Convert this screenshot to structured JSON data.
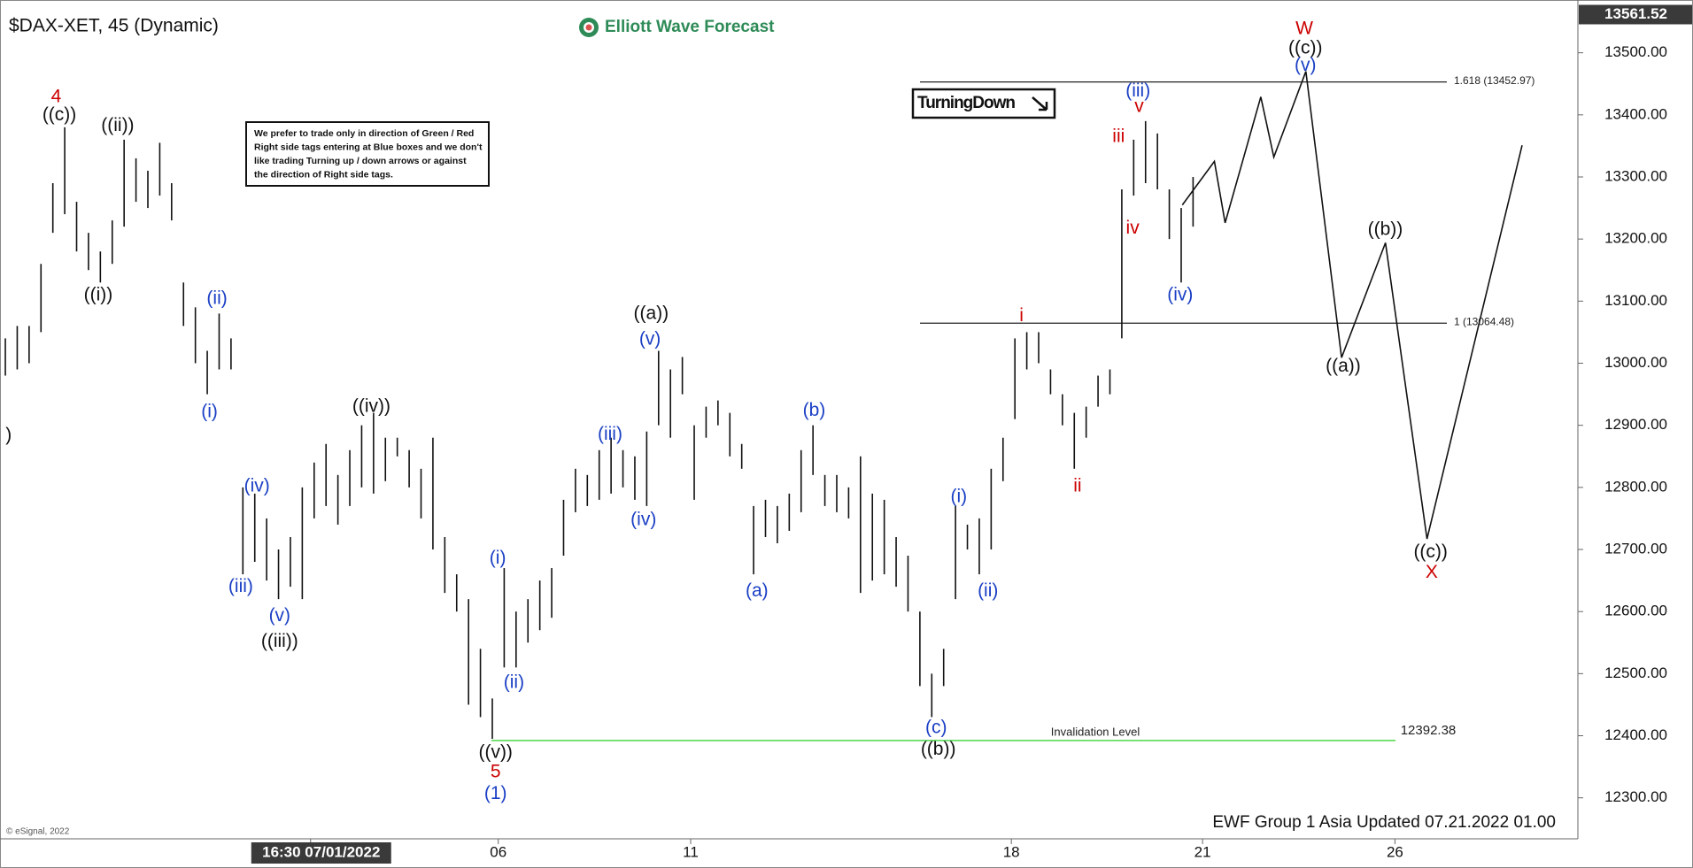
{
  "chart_data": {
    "type": "ohlc",
    "title": "$DAX-XET, 45 (Dynamic)",
    "logo": "Elliott Wave Forecast",
    "footer": "EWF Group 1 Asia Updated 07.21.2022 01.00",
    "copyright": "© eSignal, 2022",
    "notice": [
      "We prefer to trade only in direction of Green / Red",
      "Right side tags entering at Blue boxes and we don't",
      "like trading Turning up / down arrows or against",
      "the direction of Right side tags."
    ],
    "signal": "TurningDown",
    "last_price": 13561.52,
    "bar_color": "#111111",
    "ylim": [
      12234,
      13585
    ],
    "yticks": [
      {
        "value": 12300,
        "label": "12300.00"
      },
      {
        "value": 12400,
        "label": "12400.00"
      },
      {
        "value": 12500,
        "label": "12500.00"
      },
      {
        "value": 12600,
        "label": "12600.00"
      },
      {
        "value": 12700,
        "label": "12700.00"
      },
      {
        "value": 12800,
        "label": "12800.00"
      },
      {
        "value": 12900,
        "label": "12900.00"
      },
      {
        "value": 13000,
        "label": "13000.00"
      },
      {
        "value": 13100,
        "label": "13100.00"
      },
      {
        "value": 13200,
        "label": "13200.00"
      },
      {
        "value": 13300,
        "label": "13300.00"
      },
      {
        "value": 13400,
        "label": "13400.00"
      },
      {
        "value": 13500,
        "label": "13500.00"
      }
    ],
    "xlim": [
      -0.45,
      132.4
    ],
    "xticks": [
      {
        "value": 25.7,
        "label": "16:30 07/01/2022"
      },
      {
        "value": 41.5,
        "label": "06"
      },
      {
        "value": 57.7,
        "label": "11"
      },
      {
        "value": 84.7,
        "label": "18"
      },
      {
        "value": 100.8,
        "label": "21"
      },
      {
        "value": 117,
        "label": "26"
      }
    ],
    "bars": [
      {
        "high": 13040,
        "low": 12980
      },
      {
        "high": 13060,
        "low": 12990
      },
      {
        "high": 13060,
        "low": 13000
      },
      {
        "high": 13160,
        "low": 13050
      },
      {
        "high": 13290,
        "low": 13210
      },
      {
        "high": 13380,
        "low": 13240
      },
      {
        "high": 13260,
        "low": 13180
      },
      {
        "high": 13210,
        "low": 13150
      },
      {
        "high": 13180,
        "low": 13130
      },
      {
        "high": 13230,
        "low": 13160
      },
      {
        "high": 13360,
        "low": 13220
      },
      {
        "high": 13330,
        "low": 13260
      },
      {
        "high": 13310,
        "low": 13250
      },
      {
        "high": 13355,
        "low": 13270
      },
      {
        "high": 13290,
        "low": 13230
      },
      {
        "high": 13130,
        "low": 13060
      },
      {
        "high": 13090,
        "low": 13000
      },
      {
        "high": 13020,
        "low": 12950
      },
      {
        "high": 13080,
        "low": 12990
      },
      {
        "high": 13040,
        "low": 12990
      },
      {
        "high": 12800,
        "low": 12660
      },
      {
        "high": 12790,
        "low": 12680
      },
      {
        "high": 12750,
        "low": 12650
      },
      {
        "high": 12700,
        "low": 12620
      },
      {
        "high": 12720,
        "low": 12640
      },
      {
        "high": 12800,
        "low": 12620
      },
      {
        "high": 12840,
        "low": 12750
      },
      {
        "high": 12870,
        "low": 12770
      },
      {
        "high": 12820,
        "low": 12740
      },
      {
        "high": 12860,
        "low": 12770
      },
      {
        "high": 12900,
        "low": 12800
      },
      {
        "high": 12920,
        "low": 12790
      },
      {
        "high": 12880,
        "low": 12810
      },
      {
        "high": 12880,
        "low": 12850
      },
      {
        "high": 12860,
        "low": 12800
      },
      {
        "high": 12830,
        "low": 12750
      },
      {
        "high": 12880,
        "low": 12700
      },
      {
        "high": 12720,
        "low": 12630
      },
      {
        "high": 12660,
        "low": 12600
      },
      {
        "high": 12620,
        "low": 12450
      },
      {
        "high": 12540,
        "low": 12430
      },
      {
        "high": 12460,
        "low": 12395
      },
      {
        "high": 12670,
        "low": 12510
      },
      {
        "high": 12600,
        "low": 12510
      },
      {
        "high": 12620,
        "low": 12550
      },
      {
        "high": 12650,
        "low": 12570
      },
      {
        "high": 12670,
        "low": 12590
      },
      {
        "high": 12780,
        "low": 12690
      },
      {
        "high": 12830,
        "low": 12760
      },
      {
        "high": 12820,
        "low": 12770
      },
      {
        "high": 12860,
        "low": 12780
      },
      {
        "high": 12880,
        "low": 12790
      },
      {
        "high": 12860,
        "low": 12800
      },
      {
        "high": 12850,
        "low": 12780
      },
      {
        "high": 12890,
        "low": 12770
      },
      {
        "high": 13020,
        "low": 12900
      },
      {
        "high": 12990,
        "low": 12880
      },
      {
        "high": 13010,
        "low": 12950
      },
      {
        "high": 12900,
        "low": 12780
      },
      {
        "high": 12930,
        "low": 12880
      },
      {
        "high": 12940,
        "low": 12900
      },
      {
        "high": 12920,
        "low": 12850
      },
      {
        "high": 12870,
        "low": 12830
      },
      {
        "high": 12770,
        "low": 12660
      },
      {
        "high": 12780,
        "low": 12720
      },
      {
        "high": 12770,
        "low": 12710
      },
      {
        "high": 12790,
        "low": 12730
      },
      {
        "high": 12860,
        "low": 12760
      },
      {
        "high": 12900,
        "low": 12820
      },
      {
        "high": 12820,
        "low": 12770
      },
      {
        "high": 12820,
        "low": 12760
      },
      {
        "high": 12800,
        "low": 12750
      },
      {
        "high": 12850,
        "low": 12630
      },
      {
        "high": 12790,
        "low": 12650
      },
      {
        "high": 12780,
        "low": 12660
      },
      {
        "high": 12720,
        "low": 12640
      },
      {
        "high": 12690,
        "low": 12600
      },
      {
        "high": 12600,
        "low": 12480
      },
      {
        "high": 12500,
        "low": 12430
      },
      {
        "high": 12540,
        "low": 12480
      },
      {
        "high": 12770,
        "low": 12620
      },
      {
        "high": 12740,
        "low": 12700
      },
      {
        "high": 12750,
        "low": 12660
      },
      {
        "high": 12830,
        "low": 12700
      },
      {
        "high": 12880,
        "low": 12810
      },
      {
        "high": 13040,
        "low": 12910
      },
      {
        "high": 13050,
        "low": 12990
      },
      {
        "high": 13050,
        "low": 13000
      },
      {
        "high": 12990,
        "low": 12950
      },
      {
        "high": 12950,
        "low": 12900
      },
      {
        "high": 12920,
        "low": 12830
      },
      {
        "high": 12930,
        "low": 12880
      },
      {
        "high": 12980,
        "low": 12930
      },
      {
        "high": 12990,
        "low": 12950
      },
      {
        "high": 13280,
        "low": 13040
      },
      {
        "high": 13360,
        "low": 13270
      },
      {
        "high": 13390,
        "low": 13290
      },
      {
        "high": 13370,
        "low": 13280
      },
      {
        "high": 13280,
        "low": 13200
      },
      {
        "high": 13250,
        "low": 13130
      },
      {
        "high": 13300,
        "low": 13220
      }
    ],
    "projection": {
      "x": [
        99.1,
        101.8,
        102.7,
        105.7,
        106.8,
        109.5,
        112.5,
        116.2,
        119.7,
        127.7
      ],
      "y": [
        13255,
        13325,
        13226,
        13429,
        13332,
        13470,
        13009,
        13194,
        12717,
        13351
      ]
    },
    "levels": [
      {
        "value": 13452.97,
        "label": "1.618 (13452.97)",
        "color": "#222222"
      },
      {
        "value": 13064.48,
        "label": "1 (13064.48)",
        "color": "#222222"
      }
    ],
    "invalidation": {
      "label": "Invalidation Level",
      "value": 12392.38,
      "color": "#66dd66"
    },
    "annotations": [
      {
        "text": "4",
        "color": "#cc0000"
      },
      {
        "text": "((c))",
        "color": "#111111"
      },
      {
        "text": "((ii))",
        "color": "#111111"
      },
      {
        "text": "((i))",
        "color": "#111111"
      },
      {
        "text": "(ii)",
        "color": "#1a3fc4"
      },
      {
        "text": "(i)",
        "color": "#1a3fc4"
      },
      {
        "text": ")",
        "color": "#111111"
      },
      {
        "text": "((iv))",
        "color": "#111111"
      },
      {
        "text": "(iv)",
        "color": "#1a3fc4"
      },
      {
        "text": "(iii)",
        "color": "#1a3fc4"
      },
      {
        "text": "(v)",
        "color": "#1a3fc4"
      },
      {
        "text": "((iii))",
        "color": "#111111"
      },
      {
        "text": "(i)",
        "color": "#1a3fc4"
      },
      {
        "text": "(ii)",
        "color": "#1a3fc4"
      },
      {
        "text": "((v))",
        "color": "#111111"
      },
      {
        "text": "5",
        "color": "#cc0000"
      },
      {
        "text": "(1)",
        "color": "#1a3fc4"
      },
      {
        "text": "((a))",
        "color": "#111111"
      },
      {
        "text": "(v)",
        "color": "#1a3fc4"
      },
      {
        "text": "(iii)",
        "color": "#1a3fc4"
      },
      {
        "text": "(iv)",
        "color": "#1a3fc4"
      },
      {
        "text": "(b)",
        "color": "#1a3fc4"
      },
      {
        "text": "(a)",
        "color": "#1a3fc4"
      },
      {
        "text": "(c)",
        "color": "#1a3fc4"
      },
      {
        "text": "((b))",
        "color": "#111111"
      },
      {
        "text": "(i)",
        "color": "#1a3fc4"
      },
      {
        "text": "(ii)",
        "color": "#1a3fc4"
      },
      {
        "text": "i",
        "color": "#cc0000"
      },
      {
        "text": "ii",
        "color": "#cc0000"
      },
      {
        "text": "iii",
        "color": "#cc0000"
      },
      {
        "text": "iv",
        "color": "#cc0000"
      },
      {
        "text": "v",
        "color": "#cc0000"
      },
      {
        "text": "(iii)",
        "color": "#1a3fc4"
      },
      {
        "text": "(iv)",
        "color": "#1a3fc4"
      },
      {
        "text": "W",
        "color": "#cc0000"
      },
      {
        "text": "((c))",
        "color": "#111111"
      },
      {
        "text": "(v)",
        "color": "#1a3fc4"
      },
      {
        "text": "((b))",
        "color": "#111111"
      },
      {
        "text": "((a))",
        "color": "#111111"
      },
      {
        "text": "((c))",
        "color": "#111111"
      },
      {
        "text": "X",
        "color": "#cc0000"
      }
    ]
  }
}
